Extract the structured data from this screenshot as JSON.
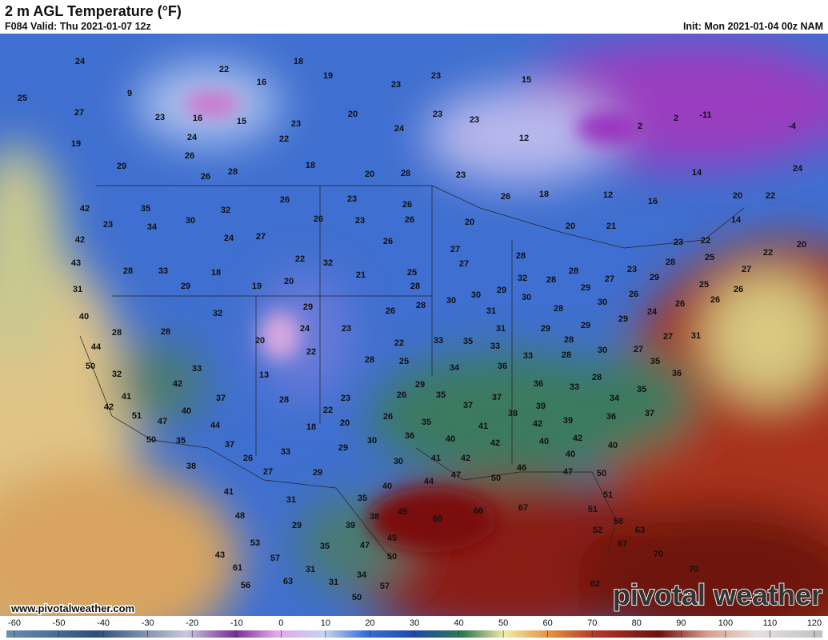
{
  "header": {
    "title": "2 m AGL Temperature (°F)",
    "valid": "F084 Valid: Thu 2021-01-07 12z",
    "init": "Init: Mon 2021-01-04 00z NAM"
  },
  "map": {
    "labels": [
      24,
      22,
      18,
      16,
      19,
      23,
      23,
      15,
      9,
      25,
      27,
      23,
      16,
      15,
      20,
      23,
      23,
      24,
      23,
      2,
      2,
      -11,
      -4,
      19,
      24,
      22,
      12,
      29,
      26,
      26,
      28,
      18,
      20,
      28,
      23,
      14,
      24,
      35,
      30,
      32,
      26,
      23,
      26,
      26,
      18,
      12,
      16,
      20,
      22,
      42,
      23,
      34,
      26,
      23,
      26,
      20,
      20,
      21,
      14,
      42,
      24,
      27,
      26,
      27,
      23,
      22,
      20,
      43,
      28,
      33,
      18,
      22,
      32,
      21,
      25,
      27,
      28,
      28,
      23,
      28,
      25,
      22,
      27,
      31,
      29,
      19,
      20,
      28,
      29,
      32,
      28,
      29,
      27,
      29,
      25,
      26,
      40,
      32,
      29,
      26,
      28,
      30,
      30,
      31,
      30,
      28,
      30,
      26,
      24,
      26,
      26,
      28,
      28,
      24,
      23,
      31,
      29,
      29,
      29,
      27,
      31,
      44,
      20,
      22,
      22,
      33,
      35,
      33,
      28,
      30,
      27,
      50,
      33,
      28,
      25,
      28,
      35,
      34,
      36,
      33,
      28,
      36,
      32,
      13,
      29,
      36,
      33,
      41,
      42,
      37,
      28,
      23,
      26,
      35,
      37,
      37,
      39,
      34,
      35,
      42,
      51,
      40,
      22,
      20,
      26,
      35,
      38,
      42,
      39,
      36,
      37,
      47,
      44,
      18,
      41,
      36,
      50,
      35,
      37,
      29,
      30,
      40,
      42,
      40,
      42,
      40,
      33,
      26,
      41,
      42,
      40,
      38,
      27,
      29,
      30,
      40,
      44,
      47,
      46,
      50,
      47,
      50,
      41,
      31,
      35,
      51,
      48,
      38,
      45,
      60,
      66,
      67,
      51,
      58,
      29,
      39,
      52,
      63,
      53,
      57,
      35,
      47,
      45,
      67,
      70,
      43,
      61,
      31,
      50,
      70,
      34,
      56,
      63,
      31,
      57,
      62,
      50
    ]
  },
  "colorbar": {
    "ticks": [
      -60,
      -50,
      -40,
      -30,
      -20,
      -10,
      0,
      10,
      20,
      30,
      40,
      50,
      60,
      70,
      80,
      90,
      100,
      110,
      120
    ]
  },
  "footer": {
    "website": "www.pivotalweather.com",
    "logo": "pivotal weather"
  }
}
